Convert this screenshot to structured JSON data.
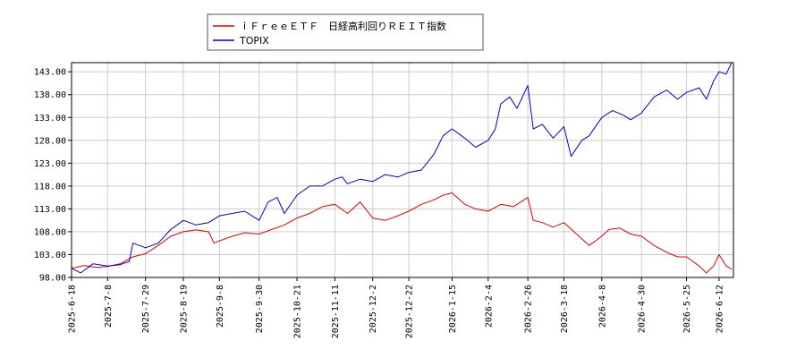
{
  "chart_data": {
    "type": "line",
    "legend": {
      "placement": "top-center"
    },
    "grid": true,
    "ylim": [
      98.0,
      145.0
    ],
    "y_ticks": [
      "98.00",
      "103.00",
      "108.00",
      "113.00",
      "118.00",
      "123.00",
      "128.00",
      "133.00",
      "138.00",
      "143.00"
    ],
    "x_ticks": [
      "2025-6-18",
      "2025-7-8",
      "2025-7-29",
      "2025-8-19",
      "2025-9-8",
      "2025-9-30",
      "2025-10-21",
      "2025-11-11",
      "2025-12-2",
      "2025-12-22",
      "2026-1-15",
      "2026-2-4",
      "2026-2-26",
      "2026-3-18",
      "2026-4-8",
      "2026-4-30",
      "2026-5-25",
      "2026-6-12"
    ],
    "x_range": [
      "2025-06-18",
      "2026-06-20"
    ],
    "series": [
      {
        "name": "ｉＦｒｅｅＥＴＦ　日経高利回りＲＥＩＴ指数",
        "color": "#dd0000",
        "points": [
          [
            "2025-06-18",
            100.0
          ],
          [
            "2025-06-25",
            100.6
          ],
          [
            "2025-07-02",
            100.2
          ],
          [
            "2025-07-08",
            100.4
          ],
          [
            "2025-07-15",
            101.0
          ],
          [
            "2025-07-22",
            102.5
          ],
          [
            "2025-07-29",
            103.2
          ],
          [
            "2025-08-05",
            105.0
          ],
          [
            "2025-08-12",
            107.0
          ],
          [
            "2025-08-19",
            108.0
          ],
          [
            "2025-08-26",
            108.4
          ],
          [
            "2025-09-02",
            108.0
          ],
          [
            "2025-09-05",
            105.5
          ],
          [
            "2025-09-08",
            106.0
          ],
          [
            "2025-09-15",
            107.0
          ],
          [
            "2025-09-22",
            107.8
          ],
          [
            "2025-09-30",
            107.5
          ],
          [
            "2025-10-07",
            108.5
          ],
          [
            "2025-10-14",
            109.5
          ],
          [
            "2025-10-21",
            111.0
          ],
          [
            "2025-10-28",
            112.0
          ],
          [
            "2025-11-04",
            113.5
          ],
          [
            "2025-11-11",
            114.0
          ],
          [
            "2025-11-18",
            112.0
          ],
          [
            "2025-11-25",
            114.5
          ],
          [
            "2025-12-02",
            111.0
          ],
          [
            "2025-12-09",
            110.5
          ],
          [
            "2025-12-16",
            111.5
          ],
          [
            "2025-12-22",
            112.5
          ],
          [
            "2025-12-29",
            114.0
          ],
          [
            "2026-01-05",
            115.0
          ],
          [
            "2026-01-10",
            116.0
          ],
          [
            "2026-01-15",
            116.5
          ],
          [
            "2026-01-22",
            114.0
          ],
          [
            "2026-01-28",
            113.0
          ],
          [
            "2026-02-04",
            112.5
          ],
          [
            "2026-02-11",
            114.0
          ],
          [
            "2026-02-18",
            113.5
          ],
          [
            "2026-02-26",
            115.5
          ],
          [
            "2026-03-01",
            110.5
          ],
          [
            "2026-03-06",
            110.0
          ],
          [
            "2026-03-12",
            109.0
          ],
          [
            "2026-03-18",
            110.0
          ],
          [
            "2026-03-25",
            107.5
          ],
          [
            "2026-04-01",
            105.0
          ],
          [
            "2026-04-08",
            107.0
          ],
          [
            "2026-04-12",
            108.5
          ],
          [
            "2026-04-18",
            108.8
          ],
          [
            "2026-04-24",
            107.5
          ],
          [
            "2026-04-30",
            107.0
          ],
          [
            "2026-05-07",
            105.0
          ],
          [
            "2026-05-14",
            103.5
          ],
          [
            "2026-05-20",
            102.5
          ],
          [
            "2026-05-25",
            102.5
          ],
          [
            "2026-06-01",
            100.5
          ],
          [
            "2026-06-05",
            99.0
          ],
          [
            "2026-06-09",
            100.5
          ],
          [
            "2026-06-12",
            103.0
          ],
          [
            "2026-06-16",
            100.5
          ],
          [
            "2026-06-19",
            99.8
          ]
        ]
      },
      {
        "name": "TOPIX",
        "color": "#0000cc",
        "points": [
          [
            "2025-06-18",
            100.0
          ],
          [
            "2025-06-23",
            99.0
          ],
          [
            "2025-06-30",
            101.0
          ],
          [
            "2025-07-08",
            100.5
          ],
          [
            "2025-07-15",
            100.8
          ],
          [
            "2025-07-20",
            101.5
          ],
          [
            "2025-07-22",
            105.5
          ],
          [
            "2025-07-29",
            104.5
          ],
          [
            "2025-08-05",
            105.5
          ],
          [
            "2025-08-12",
            108.5
          ],
          [
            "2025-08-19",
            110.5
          ],
          [
            "2025-08-26",
            109.5
          ],
          [
            "2025-09-02",
            110.0
          ],
          [
            "2025-09-08",
            111.5
          ],
          [
            "2025-09-15",
            112.0
          ],
          [
            "2025-09-22",
            112.5
          ],
          [
            "2025-09-30",
            110.5
          ],
          [
            "2025-10-05",
            114.5
          ],
          [
            "2025-10-10",
            115.5
          ],
          [
            "2025-10-14",
            112.0
          ],
          [
            "2025-10-21",
            116.0
          ],
          [
            "2025-10-28",
            118.0
          ],
          [
            "2025-11-04",
            118.0
          ],
          [
            "2025-11-11",
            119.5
          ],
          [
            "2025-11-15",
            120.0
          ],
          [
            "2025-11-18",
            118.5
          ],
          [
            "2025-11-25",
            119.5
          ],
          [
            "2025-12-02",
            119.0
          ],
          [
            "2025-12-09",
            120.5
          ],
          [
            "2025-12-16",
            120.0
          ],
          [
            "2025-12-22",
            121.0
          ],
          [
            "2025-12-29",
            121.5
          ],
          [
            "2026-01-05",
            125.0
          ],
          [
            "2026-01-10",
            129.0
          ],
          [
            "2026-01-15",
            130.5
          ],
          [
            "2026-01-22",
            128.5
          ],
          [
            "2026-01-28",
            126.5
          ],
          [
            "2026-02-04",
            128.0
          ],
          [
            "2026-02-08",
            130.5
          ],
          [
            "2026-02-11",
            136.0
          ],
          [
            "2026-02-16",
            137.5
          ],
          [
            "2026-02-20",
            135.0
          ],
          [
            "2026-02-26",
            140.0
          ],
          [
            "2026-03-01",
            130.5
          ],
          [
            "2026-03-06",
            131.5
          ],
          [
            "2026-03-12",
            128.5
          ],
          [
            "2026-03-18",
            131.0
          ],
          [
            "2026-03-22",
            124.5
          ],
          [
            "2026-03-28",
            128.0
          ],
          [
            "2026-04-01",
            129.0
          ],
          [
            "2026-04-08",
            133.0
          ],
          [
            "2026-04-14",
            134.5
          ],
          [
            "2026-04-20",
            133.5
          ],
          [
            "2026-04-24",
            132.5
          ],
          [
            "2026-04-30",
            134.0
          ],
          [
            "2026-05-07",
            137.5
          ],
          [
            "2026-05-14",
            139.0
          ],
          [
            "2026-05-20",
            137.0
          ],
          [
            "2026-05-25",
            138.5
          ],
          [
            "2026-06-01",
            139.5
          ],
          [
            "2026-06-05",
            137.0
          ],
          [
            "2026-06-09",
            141.0
          ],
          [
            "2026-06-12",
            143.0
          ],
          [
            "2026-06-16",
            142.5
          ],
          [
            "2026-06-19",
            145.0
          ]
        ]
      }
    ]
  }
}
